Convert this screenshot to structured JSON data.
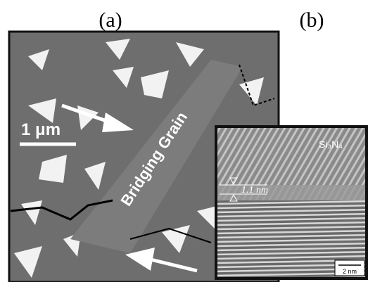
{
  "panel_a": {
    "label": "(a)",
    "scale_bar": "1 μm",
    "annotation": "Bridging Grain"
  },
  "panel_b": {
    "label": "(b)",
    "material": "Si₃N₄",
    "thickness": "1.1 nm",
    "scale_bar": "2 nm"
  }
}
